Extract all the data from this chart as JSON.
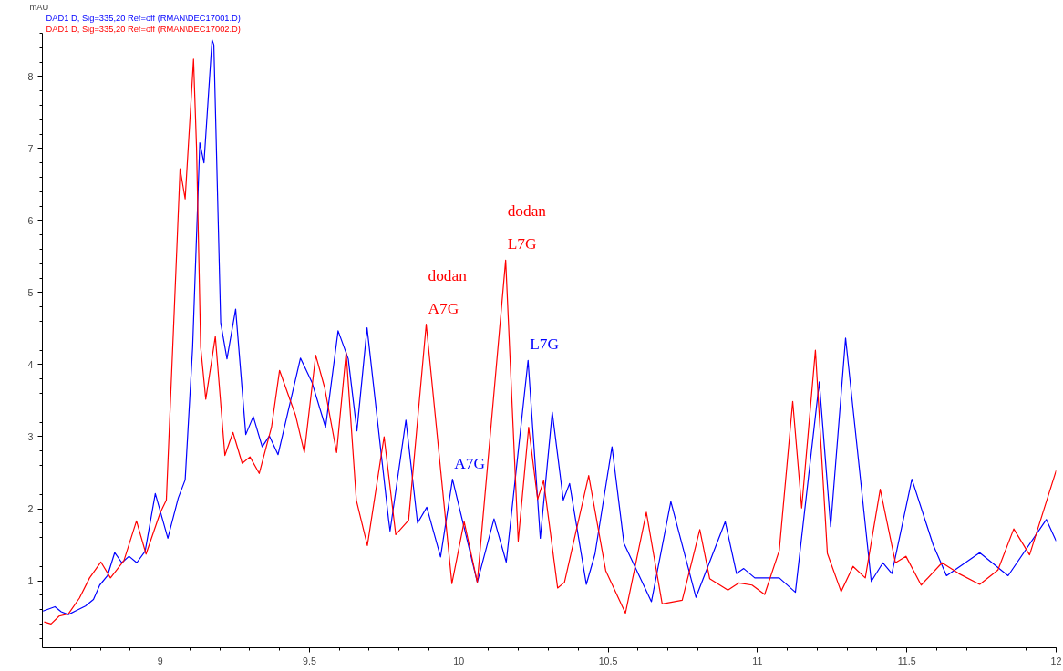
{
  "chart_data": {
    "type": "line",
    "ylabel": "mAU",
    "legend": "top left",
    "marker": "none",
    "line_style": "solid",
    "grid": false,
    "xlim": [
      8.606,
      12.0
    ],
    "ylim": [
      0.07,
      8.6
    ],
    "xticks": [
      9,
      9.5,
      10,
      10.5,
      11,
      11.5,
      12
    ],
    "yticks": [
      1,
      2,
      3,
      4,
      5,
      6,
      7,
      8
    ],
    "series": [
      {
        "name": "DAD1 D, Sig=335,20 Ref=off (RMAN\\DEC17001.D)",
        "color": "#0000ff",
        "x": [
          8.608,
          8.648,
          8.669,
          8.693,
          8.716,
          8.75,
          8.777,
          8.798,
          8.824,
          8.848,
          8.872,
          8.896,
          8.922,
          8.95,
          8.984,
          9.026,
          9.061,
          9.084,
          9.109,
          9.133,
          9.147,
          9.174,
          9.18,
          9.203,
          9.224,
          9.253,
          9.287,
          9.312,
          9.342,
          9.366,
          9.395,
          9.47,
          9.508,
          9.554,
          9.596,
          9.63,
          9.659,
          9.693,
          9.765,
          9.77,
          9.823,
          9.862,
          9.893,
          9.939,
          9.979,
          10.062,
          10.118,
          10.159,
          10.232,
          10.273,
          10.313,
          10.35,
          10.371,
          10.427,
          10.456,
          10.513,
          10.553,
          10.645,
          10.71,
          10.794,
          10.892,
          10.93,
          10.954,
          10.991,
          11.073,
          11.127,
          11.207,
          11.245,
          11.295,
          11.381,
          11.42,
          11.45,
          11.517,
          11.588,
          11.633,
          11.744,
          11.839,
          11.967,
          12.0
        ],
        "values": [
          0.58,
          0.64,
          0.57,
          0.53,
          0.58,
          0.65,
          0.74,
          0.94,
          1.07,
          1.39,
          1.25,
          1.34,
          1.25,
          1.41,
          2.21,
          1.59,
          2.15,
          2.4,
          4.24,
          7.08,
          6.8,
          8.51,
          8.44,
          4.58,
          4.08,
          4.77,
          3.03,
          3.28,
          2.86,
          3.01,
          2.75,
          4.09,
          3.76,
          3.13,
          4.47,
          4.08,
          3.08,
          4.51,
          1.85,
          1.69,
          3.23,
          1.8,
          2.02,
          1.33,
          2.41,
          0.98,
          1.86,
          1.26,
          4.06,
          1.59,
          3.34,
          2.12,
          2.35,
          0.95,
          1.37,
          2.86,
          1.52,
          0.71,
          2.1,
          0.77,
          1.82,
          1.1,
          1.17,
          1.04,
          1.04,
          0.84,
          3.76,
          1.75,
          4.37,
          0.99,
          1.25,
          1.1,
          2.41,
          1.5,
          1.07,
          1.39,
          1.07,
          1.85,
          1.55
        ]
      },
      {
        "name": "DAD1 D, Sig=335,20 Ref=off (RMAN\\DEC17002.D)",
        "color": "#ff0000",
        "x": [
          8.612,
          8.635,
          8.662,
          8.693,
          8.73,
          8.764,
          8.802,
          8.834,
          8.879,
          8.921,
          8.953,
          9.0,
          9.021,
          9.048,
          9.067,
          9.084,
          9.112,
          9.122,
          9.136,
          9.153,
          9.185,
          9.217,
          9.244,
          9.275,
          9.301,
          9.332,
          9.373,
          9.4,
          9.454,
          9.483,
          9.521,
          9.551,
          9.591,
          9.623,
          9.657,
          9.694,
          9.75,
          9.789,
          9.832,
          9.891,
          9.977,
          10.018,
          10.062,
          10.157,
          10.199,
          10.234,
          10.264,
          10.284,
          10.331,
          10.354,
          10.435,
          10.492,
          10.558,
          10.628,
          10.681,
          10.748,
          10.807,
          10.84,
          10.901,
          10.937,
          10.982,
          11.024,
          11.073,
          11.118,
          11.148,
          11.194,
          11.234,
          11.28,
          11.32,
          11.361,
          11.411,
          11.462,
          11.497,
          11.548,
          11.618,
          11.674,
          11.744,
          11.805,
          11.858,
          11.911,
          12.0
        ],
        "values": [
          0.43,
          0.4,
          0.51,
          0.54,
          0.76,
          1.04,
          1.26,
          1.04,
          1.28,
          1.83,
          1.37,
          1.94,
          2.12,
          4.8,
          6.72,
          6.3,
          8.24,
          7.02,
          4.24,
          3.52,
          4.39,
          2.74,
          3.06,
          2.63,
          2.72,
          2.49,
          3.13,
          3.92,
          3.29,
          2.78,
          4.13,
          3.68,
          2.78,
          4.17,
          2.12,
          1.49,
          3.0,
          1.64,
          1.84,
          4.56,
          0.96,
          1.82,
          0.98,
          5.45,
          1.55,
          3.13,
          2.13,
          2.39,
          0.9,
          0.98,
          2.46,
          1.14,
          0.55,
          1.95,
          0.68,
          0.73,
          1.71,
          1.03,
          0.87,
          0.97,
          0.94,
          0.81,
          1.42,
          3.49,
          2.01,
          4.2,
          1.38,
          0.85,
          1.2,
          1.04,
          2.27,
          1.25,
          1.34,
          0.94,
          1.25,
          1.1,
          0.95,
          1.15,
          1.72,
          1.36,
          2.53
        ]
      }
    ],
    "annotations": [
      {
        "text": "dodan\nA7G",
        "x": 9.891,
        "y": 4.56
      },
      {
        "text": "dodan\nL7G",
        "x": 10.157,
        "y": 5.45
      },
      {
        "text": "A7G",
        "x": 9.979,
        "y": 2.41
      },
      {
        "text": "L7G",
        "x": 10.232,
        "y": 4.06
      }
    ]
  }
}
